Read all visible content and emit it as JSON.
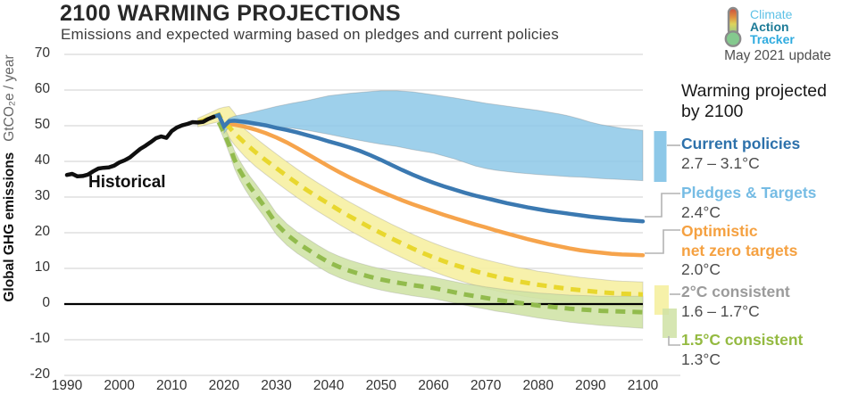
{
  "header": {
    "title": "2100 WARMING PROJECTIONS",
    "subtitle": "Emissions and expected warming based on pledges and current policies"
  },
  "logo": {
    "line1": "Climate",
    "line2": "Action",
    "line3": "Tracker",
    "update": "May 2021 update"
  },
  "annotations": {
    "historical_label": "Historical"
  },
  "axes": {
    "y_label_bold": "Global GHG emissions",
    "y_label_light": "GtCO₂e / year"
  },
  "legend": {
    "title_line1": "Warming projected",
    "title_line2": "by 2100",
    "entries": [
      {
        "label": "Current policies",
        "temp": "2.7 – 3.1°C",
        "color": "#2d71ab"
      },
      {
        "label": "Pledges & Targets",
        "temp": "2.4°C",
        "color": "#76bce4"
      },
      {
        "label": "Optimistic",
        "label2": "net zero targets",
        "temp": "2.0°C",
        "color": "#f5a141"
      },
      {
        "label": "2°C consistent",
        "temp": "1.6 – 1.7°C",
        "color": "#9b9b9b"
      },
      {
        "label": "1.5°C consistent",
        "temp": "1.3°C",
        "color": "#94ba41"
      }
    ]
  },
  "chart_data": {
    "type": "line",
    "title": "2100 WARMING PROJECTIONS",
    "xlabel": "",
    "ylabel": "Global GHG emissions GtCO₂e / year",
    "x_range": [
      1990,
      2100
    ],
    "y_range": [
      -20,
      70
    ],
    "x_ticks": [
      1990,
      2000,
      2010,
      2020,
      2030,
      2040,
      2050,
      2060,
      2070,
      2080,
      2090,
      2100
    ],
    "y_ticks": [
      70,
      60,
      50,
      40,
      30,
      20,
      10,
      0,
      -10,
      -20
    ],
    "grid": "horizontal",
    "colors": {
      "grid": "#cfcfcf",
      "zero_line": "#000000",
      "connector": "#b3b3b3",
      "historical": "#0f0f0f",
      "current_policies_band": "#8dc8e8",
      "pledges_line": "#3b79b1",
      "optimistic_line": "#f6a44c",
      "two_deg_band": "#f6f0a4",
      "two_deg_line": "#e8d72e",
      "one_five_band": "#cfe2a5",
      "one_five_line": "#92bb4d"
    },
    "series": [
      {
        "name": "Historical",
        "type": "line",
        "points": [
          [
            1990,
            36.2
          ],
          [
            1991,
            36.5
          ],
          [
            1992,
            35.8
          ],
          [
            1993,
            35.9
          ],
          [
            1994,
            36.3
          ],
          [
            1995,
            37.2
          ],
          [
            1996,
            38.0
          ],
          [
            1997,
            38.2
          ],
          [
            1998,
            38.3
          ],
          [
            1999,
            38.8
          ],
          [
            2000,
            39.7
          ],
          [
            2001,
            40.3
          ],
          [
            2002,
            41.1
          ],
          [
            2003,
            42.3
          ],
          [
            2004,
            43.5
          ],
          [
            2005,
            44.4
          ],
          [
            2006,
            45.4
          ],
          [
            2007,
            46.5
          ],
          [
            2008,
            47.0
          ],
          [
            2009,
            46.6
          ],
          [
            2010,
            48.5
          ],
          [
            2011,
            49.5
          ],
          [
            2012,
            50.1
          ],
          [
            2013,
            50.5
          ],
          [
            2014,
            51.0
          ],
          [
            2015,
            50.9
          ],
          [
            2016,
            51.1
          ],
          [
            2017,
            51.9
          ],
          [
            2018,
            52.5
          ]
        ]
      },
      {
        "name": "Current policies",
        "type": "band",
        "warming": "2.7 – 3.1°C",
        "years": [
          2020,
          2021,
          2022,
          2024,
          2026,
          2028,
          2030,
          2033,
          2036,
          2040,
          2044,
          2048,
          2050,
          2053,
          2056,
          2060,
          2064,
          2068,
          2070,
          2072,
          2076,
          2080,
          2084,
          2086,
          2088,
          2090,
          2092,
          2096,
          2100
        ],
        "upper": [
          50.6,
          52.1,
          52.7,
          53.3,
          54.0,
          54.7,
          55.4,
          56.3,
          57.1,
          58.4,
          59.1,
          59.6,
          59.8,
          59.8,
          59.5,
          58.7,
          57.8,
          56.8,
          56.3,
          55.9,
          55.1,
          54.3,
          53.3,
          52.7,
          51.9,
          51.0,
          50.3,
          49.3,
          48.7
        ],
        "lower": [
          47.9,
          49.7,
          50.2,
          50.4,
          50.3,
          50.1,
          49.7,
          49.3,
          48.7,
          47.6,
          46.4,
          45.3,
          44.8,
          44.2,
          43.3,
          42.3,
          40.7,
          38.7,
          38.0,
          37.5,
          36.8,
          36.3,
          35.9,
          35.7,
          35.6,
          35.4,
          35.2,
          34.9,
          34.6
        ]
      },
      {
        "name": "Pledges & Targets",
        "type": "line",
        "warming": "2.4°C",
        "points": [
          [
            2018,
            52.5
          ],
          [
            2019,
            53.0
          ],
          [
            2020,
            49.8
          ],
          [
            2021,
            51.3
          ],
          [
            2022,
            51.4
          ],
          [
            2024,
            51.1
          ],
          [
            2026,
            50.6
          ],
          [
            2028,
            50.1
          ],
          [
            2030,
            49.4
          ],
          [
            2032,
            48.8
          ],
          [
            2034,
            48.1
          ],
          [
            2036,
            47.3
          ],
          [
            2038,
            46.5
          ],
          [
            2040,
            45.6
          ],
          [
            2042,
            44.8
          ],
          [
            2044,
            43.9
          ],
          [
            2046,
            42.9
          ],
          [
            2048,
            41.7
          ],
          [
            2050,
            40.4
          ],
          [
            2052,
            39.0
          ],
          [
            2054,
            37.6
          ],
          [
            2056,
            36.3
          ],
          [
            2058,
            35.1
          ],
          [
            2060,
            34.0
          ],
          [
            2062,
            33.0
          ],
          [
            2064,
            32.1
          ],
          [
            2066,
            31.2
          ],
          [
            2068,
            30.4
          ],
          [
            2070,
            29.7
          ],
          [
            2072,
            29.0
          ],
          [
            2074,
            28.3
          ],
          [
            2076,
            27.7
          ],
          [
            2078,
            27.1
          ],
          [
            2080,
            26.6
          ],
          [
            2082,
            26.1
          ],
          [
            2084,
            25.7
          ],
          [
            2086,
            25.3
          ],
          [
            2088,
            24.9
          ],
          [
            2090,
            24.5
          ],
          [
            2092,
            24.2
          ],
          [
            2094,
            23.9
          ],
          [
            2096,
            23.6
          ],
          [
            2098,
            23.4
          ],
          [
            2100,
            23.2
          ]
        ]
      },
      {
        "name": "Optimistic net zero targets",
        "type": "line",
        "warming": "2.0°C",
        "points": [
          [
            2020,
            49.9
          ],
          [
            2021,
            50.4
          ],
          [
            2022,
            50.3
          ],
          [
            2024,
            49.7
          ],
          [
            2026,
            48.9
          ],
          [
            2028,
            47.9
          ],
          [
            2030,
            46.7
          ],
          [
            2032,
            45.3
          ],
          [
            2034,
            43.7
          ],
          [
            2036,
            42.0
          ],
          [
            2038,
            40.3
          ],
          [
            2040,
            38.6
          ],
          [
            2042,
            37.0
          ],
          [
            2044,
            35.5
          ],
          [
            2046,
            34.1
          ],
          [
            2048,
            32.8
          ],
          [
            2050,
            31.5
          ],
          [
            2052,
            30.3
          ],
          [
            2054,
            29.1
          ],
          [
            2056,
            28.0
          ],
          [
            2058,
            27.0
          ],
          [
            2060,
            26.0
          ],
          [
            2062,
            25.0
          ],
          [
            2064,
            24.1
          ],
          [
            2066,
            23.2
          ],
          [
            2068,
            22.3
          ],
          [
            2070,
            21.5
          ],
          [
            2072,
            20.6
          ],
          [
            2074,
            19.8
          ],
          [
            2076,
            19.0
          ],
          [
            2078,
            18.2
          ],
          [
            2080,
            17.5
          ],
          [
            2082,
            16.8
          ],
          [
            2084,
            16.2
          ],
          [
            2086,
            15.6
          ],
          [
            2088,
            15.1
          ],
          [
            2090,
            14.7
          ],
          [
            2092,
            14.4
          ],
          [
            2094,
            14.1
          ],
          [
            2096,
            13.9
          ],
          [
            2098,
            13.8
          ],
          [
            2100,
            13.7
          ]
        ]
      },
      {
        "name": "2°C consistent",
        "type": "band+dashed-line",
        "warming": "1.6 – 1.7°C",
        "years": [
          2015,
          2017,
          2019,
          2020,
          2021,
          2022,
          2024,
          2026,
          2028,
          2030,
          2032,
          2034,
          2036,
          2038,
          2040,
          2042,
          2044,
          2046,
          2048,
          2050,
          2052,
          2054,
          2056,
          2058,
          2060,
          2062,
          2064,
          2066,
          2068,
          2070,
          2072,
          2074,
          2076,
          2078,
          2080,
          2082,
          2084,
          2086,
          2088,
          2090,
          2092,
          2094,
          2096,
          2098,
          2100
        ],
        "center": [
          50.9,
          51.9,
          53.1,
          50.6,
          49.6,
          47.9,
          45.1,
          42.6,
          40.3,
          38.1,
          35.9,
          33.8,
          31.8,
          29.9,
          28.1,
          26.3,
          24.6,
          23.0,
          21.4,
          19.9,
          18.4,
          17.0,
          15.6,
          14.3,
          13.1,
          12.0,
          11.0,
          10.1,
          9.2,
          8.4,
          7.7,
          7.0,
          6.4,
          5.9,
          5.4,
          5.0,
          4.6,
          4.2,
          3.9,
          3.6,
          3.3,
          3.1,
          2.9,
          2.8,
          2.7
        ],
        "upper": [
          52.1,
          53.4,
          54.8,
          55.2,
          55.4,
          53.6,
          49.0,
          46.6,
          44.3,
          42.1,
          39.9,
          37.8,
          35.8,
          33.9,
          32.1,
          30.3,
          28.6,
          27.0,
          25.4,
          23.9,
          22.4,
          21.0,
          19.6,
          18.3,
          17.1,
          16.0,
          15.0,
          14.1,
          13.2,
          12.4,
          11.7,
          11.0,
          10.3,
          9.8,
          9.2,
          8.8,
          8.3,
          7.9,
          7.5,
          7.2,
          6.9,
          6.6,
          6.4,
          6.3,
          6.2
        ],
        "lower": [
          49.7,
          50.4,
          51.1,
          48.1,
          46.6,
          44.6,
          41.3,
          38.6,
          36.3,
          34.1,
          31.9,
          29.8,
          27.8,
          25.9,
          24.1,
          22.3,
          20.6,
          19.0,
          17.4,
          15.9,
          14.4,
          13.0,
          11.6,
          10.3,
          9.1,
          8.0,
          7.0,
          6.1,
          5.2,
          4.4,
          3.7,
          3.0,
          2.5,
          2.0,
          1.6,
          1.2,
          0.9,
          0.5,
          0.3,
          0.0,
          -0.3,
          -0.4,
          -0.6,
          -0.7,
          -0.8
        ]
      },
      {
        "name": "1.5°C consistent",
        "type": "band+dashed-line",
        "warming": "1.3°C",
        "years": [
          2019,
          2020,
          2021,
          2022,
          2023,
          2024,
          2025,
          2026,
          2028,
          2030,
          2032,
          2034,
          2036,
          2038,
          2040,
          2042,
          2044,
          2046,
          2048,
          2050,
          2052,
          2054,
          2056,
          2058,
          2060,
          2062,
          2064,
          2066,
          2068,
          2070,
          2072,
          2074,
          2076,
          2078,
          2080,
          2082,
          2084,
          2086,
          2088,
          2090,
          2092,
          2094,
          2096,
          2098,
          2100
        ],
        "center": [
          51.0,
          48.0,
          44.5,
          40.5,
          37.5,
          35.0,
          32.8,
          30.8,
          26.8,
          22.5,
          19.5,
          17.2,
          15.3,
          13.4,
          11.7,
          10.4,
          9.3,
          8.4,
          7.6,
          6.9,
          6.3,
          5.8,
          5.3,
          4.9,
          4.5,
          3.9,
          3.3,
          2.7,
          2.2,
          1.7,
          1.2,
          0.8,
          0.4,
          0.0,
          -0.4,
          -0.7,
          -1.0,
          -1.3,
          -1.5,
          -1.7,
          -1.9,
          -2.0,
          -2.1,
          -2.2,
          -2.3
        ],
        "upper": [
          52.2,
          49.8,
          46.7,
          43.0,
          40.2,
          37.8,
          35.7,
          33.8,
          29.8,
          25.5,
          22.5,
          20.2,
          18.3,
          16.4,
          14.7,
          13.4,
          12.3,
          11.4,
          10.6,
          9.9,
          9.3,
          8.8,
          8.3,
          7.9,
          7.5,
          6.9,
          6.3,
          5.7,
          5.3,
          4.8,
          4.4,
          4.0,
          3.7,
          3.4,
          3.1,
          2.9,
          2.7,
          2.5,
          2.4,
          2.3,
          2.2,
          2.2,
          2.2,
          2.2,
          2.2
        ],
        "lower": [
          49.8,
          46.2,
          42.3,
          38.0,
          34.8,
          32.2,
          29.9,
          27.8,
          23.8,
          19.5,
          16.5,
          14.2,
          12.3,
          10.4,
          8.7,
          7.4,
          6.3,
          5.4,
          4.6,
          3.9,
          3.3,
          2.8,
          2.3,
          1.9,
          1.5,
          0.9,
          0.3,
          -0.3,
          -0.9,
          -1.4,
          -2.0,
          -2.4,
          -2.9,
          -3.4,
          -3.9,
          -4.3,
          -4.7,
          -5.1,
          -5.4,
          -5.7,
          -6.0,
          -6.2,
          -6.4,
          -6.6,
          -6.8
        ]
      }
    ]
  }
}
